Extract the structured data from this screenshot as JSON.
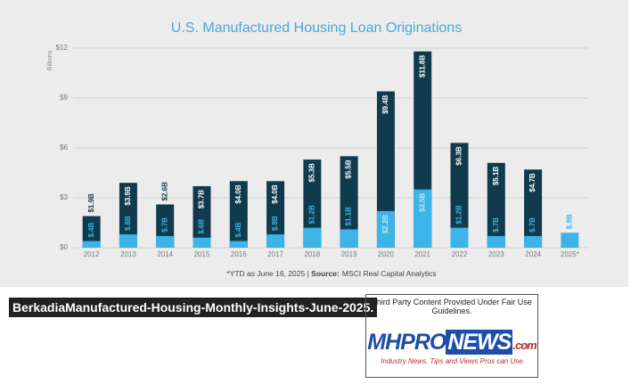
{
  "chart_data": {
    "type": "bar",
    "title": "U.S. Manufactured Housing Loan Originations",
    "y_label": "Billions",
    "footnote": "*YTD as June 16, 2025",
    "source_label": "Source:",
    "source": "MSCI Real Capital Analytics",
    "categories": [
      "2012",
      "2013",
      "2014",
      "2015",
      "2016",
      "2017",
      "2018",
      "2019",
      "2020",
      "2021",
      "2022",
      "2023",
      "2024",
      "2025*"
    ],
    "series": [
      {
        "color": "#0f3b4c",
        "values": [
          1.9,
          3.9,
          2.6,
          3.7,
          4.0,
          4.0,
          5.3,
          5.5,
          9.4,
          11.8,
          6.3,
          5.1,
          4.7,
          null
        ],
        "value_labels": [
          "$1.9B",
          "$3.9B",
          "$2.6B",
          "$3.7B",
          "$4.0B",
          "$4.0B",
          "$5.3B",
          "$5.5B",
          "$9.4B",
          "$11.8B",
          "$6.3B",
          "$5.1B",
          "$4.7B",
          null
        ]
      },
      {
        "color": "#3db4e8",
        "values": [
          0.4,
          0.8,
          0.7,
          0.6,
          0.4,
          0.8,
          1.2,
          1.1,
          2.2,
          3.5,
          1.2,
          0.7,
          0.7,
          0.9
        ],
        "value_labels": [
          "$.4B",
          "$.8B",
          "$.7B",
          "$.6B",
          "$.4B",
          "$.8B",
          "$1.2B",
          "$1.1B",
          "$2.2B",
          "$3.5B",
          "$1.2B",
          "$.7B",
          "$.7B",
          "$.9B"
        ]
      }
    ],
    "ylim": [
      0,
      12
    ],
    "yticks": [
      {
        "value": 0,
        "label": "$0"
      },
      {
        "value": 3,
        "label": "$3"
      },
      {
        "value": 6,
        "label": "$6"
      },
      {
        "value": 9,
        "label": "$9"
      },
      {
        "value": 12,
        "label": "$12"
      }
    ],
    "grid": true
  },
  "caption": "BerkadiaManufactured-Housing-Monthly-Insights-June-2025.",
  "badge": {
    "notice": "Third Party Content Provided Under Fair Use Guidelines.",
    "brand_a": "MHPRO",
    "brand_b": "NEWS",
    "brand_c": ".com",
    "tagline": "Industry News, Tips and Views Pros can Use"
  }
}
